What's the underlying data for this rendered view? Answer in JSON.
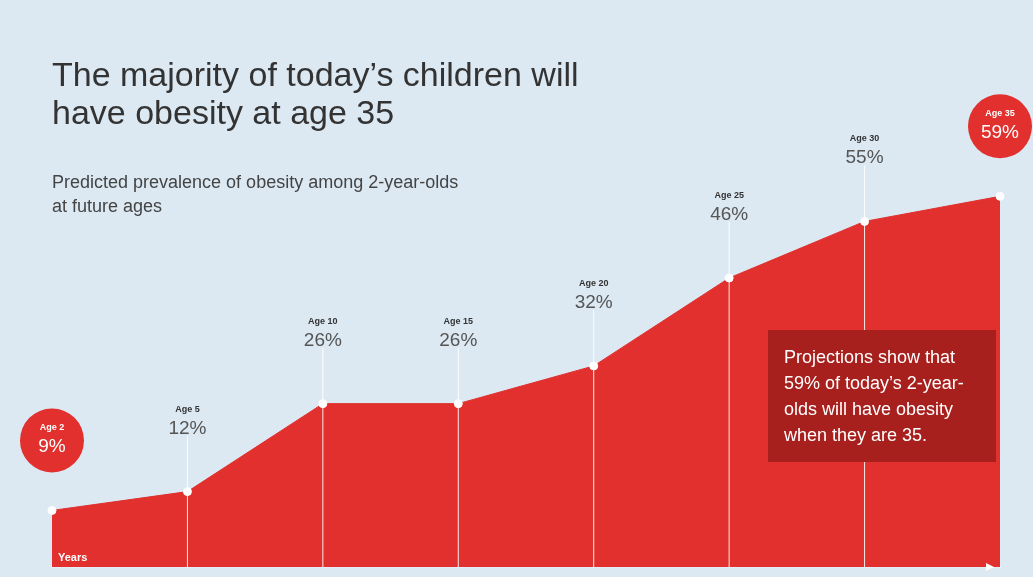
{
  "chart_data": {
    "type": "area",
    "title": "The majority of today’s children will have obesity at age 35",
    "subtitle": "Predicted prevalence of obesity among 2-year-olds at future ages",
    "xlabel": "Years",
    "categories": [
      null,
      null,
      null,
      null,
      null,
      null,
      null,
      null
    ],
    "values": [
      9,
      12,
      26,
      26,
      32,
      46,
      55,
      59
    ],
    "color": "#e1302d",
    "marker": "circle",
    "tick_labels": false,
    "value_labels": [
      "9%",
      "12%",
      "26%",
      "26%",
      "32%",
      "46%",
      "55%",
      "59%"
    ],
    "annotations": [
      "Age 2",
      "Age 5",
      "Age 10",
      "Age 15",
      "Age 20",
      "Age 25",
      "Age 30",
      "Age 35",
      "Projections show that 59% of today’s 2-year-olds will have obesity when they are 35."
    ]
  }
}
